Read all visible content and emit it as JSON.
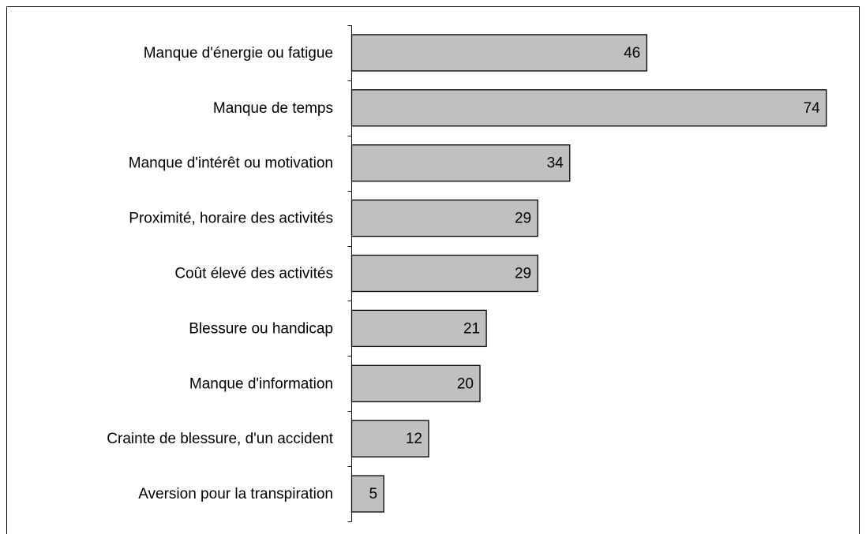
{
  "chart_data": {
    "type": "barh",
    "categories": [
      "Manque d'énergie ou fatigue",
      "Manque de temps",
      "Manque d'intérêt ou motivation",
      "Proximité, horaire des activités",
      "Coût élevé des activités",
      "Blessure ou handicap",
      "Manque d'information",
      "Crainte de blessure, d'un accident",
      "Aversion pour la transpiration"
    ],
    "values": [
      46,
      74,
      34,
      29,
      29,
      21,
      20,
      12,
      5
    ],
    "color": "#c0c0c0",
    "xlim": [
      0,
      80
    ]
  }
}
